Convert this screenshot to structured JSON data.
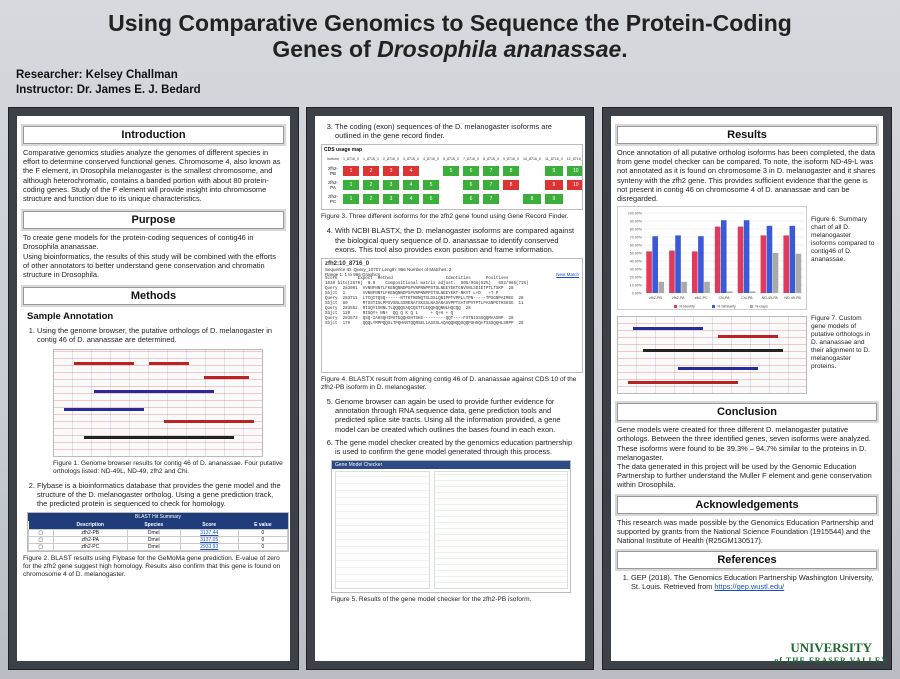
{
  "title": {
    "line1": "Using Comparative Genomics to Sequence the Protein-Coding",
    "line2_pre": "Genes of ",
    "line2_italic": "Drosophila ananassae",
    "line2_post": "."
  },
  "authors": {
    "researcher": "Researcher: Kelsey Challman",
    "instructor": "Instructor: Dr. James E. J. Bedard"
  },
  "introduction": {
    "heading": "Introduction",
    "text": "Comparative genomics studies analyze the genomes of different species in effort to determine conserved functional genes. Chromosome 4, also known as the F element, in Drosophila melanogaster is the smallest chromosome, and although heterochromatic, contains a banded portion with about 80 protein-coding genes. Study of the F element will provide insight into chromosome structure and function due to its unique characteristics."
  },
  "purpose": {
    "heading": "Purpose",
    "text1": "To create gene models for the protein-coding sequences of contig46 in Drosophila ananassae.",
    "text2": "Using bioinformatics, the results of this study will be combined with the efforts of other annotators to better understand gene conservation and chromatin structure in Drosophila."
  },
  "methods": {
    "heading": "Methods",
    "sub": "Sample Annotation",
    "step1": "Using the genome browser, the putative orthologs of D. melanogaster in contig 46 of D. ananassae are determined.",
    "fig1_cap": "Figure 1. Genome browser results for contig 46 of D. ananassae. Four putative orthologs listed: ND-49L, ND-49, zfh2 and Chi.",
    "step2": "Flybase is a bioinformatics database that provides the gene model and the structure of the D. melanogaster ortholog. Using a gene prediction track, the predicted protein is sequenced to check for homology.",
    "blast_table": {
      "title": "BLAST Hit Summary",
      "headers": [
        "",
        "Description",
        "Species",
        "Score",
        "E value"
      ],
      "rows": [
        [
          "",
          "zfh2-PB",
          "Dmel",
          "3137.44",
          "0"
        ],
        [
          "",
          "zfh2-PA",
          "Dmel",
          "3137.05",
          "0"
        ],
        [
          "",
          "zfh2-PC",
          "Dmel",
          "2933.93",
          "0"
        ]
      ]
    },
    "fig2_cap": "Figure 2. BLAST results using Flybase for the GeMoMa gene prediction. E-value of zero for the zfh2 gene suggest high homology. Results also confirm that this gene is found on chromosome 4 of D. melanogaster."
  },
  "col2": {
    "step3": "The coding (exon) sequences of the D. melanogaster isoforms are outlined in the gene record finder.",
    "usage_title": "CDS usage map",
    "usage_header": [
      "Isoform",
      "1_8716_0",
      "1_8716_1",
      "2_8716_0",
      "3_8716_0",
      "4_8716_0",
      "5_8716_0",
      "7_8716_0",
      "8_8716_0",
      "9_8716_0",
      "10_8716_0",
      "11_8716_0",
      "12_8716_0"
    ],
    "usage_rows": [
      {
        "name": "zfh2-PB",
        "cells": [
          "1",
          "2",
          "3",
          "4",
          "",
          "5",
          "6",
          "7",
          "8",
          "",
          "9",
          "10"
        ],
        "colors": [
          "r",
          "r",
          "r",
          "r",
          "w",
          "g",
          "g",
          "g",
          "g",
          "w",
          "g",
          "g"
        ]
      },
      {
        "name": "zfh2-PA",
        "cells": [
          "1",
          "2",
          "3",
          "4",
          "5",
          "",
          "6",
          "7",
          "8",
          "",
          "9",
          "10"
        ],
        "colors": [
          "g",
          "g",
          "g",
          "g",
          "g",
          "w",
          "g",
          "g",
          "r",
          "w",
          "r",
          "r"
        ]
      },
      {
        "name": "zfh2-PC",
        "cells": [
          "1",
          "2",
          "3",
          "4",
          "5",
          "",
          "6",
          "7",
          "",
          "8",
          "9",
          ""
        ],
        "colors": [
          "g",
          "g",
          "g",
          "g",
          "g",
          "w",
          "g",
          "g",
          "w",
          "g",
          "g",
          "w"
        ]
      }
    ],
    "fig3_cap": "Figure 3. Three different isoforms for the zfh2 gene found using Gene Record Finder.",
    "step4": "With NCBI BLASTX, the D. melanogaster isoforms are compared against the biological query sequence of D. ananassae to identify conserved exons. This tool also provides exon position and frame information.",
    "blast_head": "zfh2:10_8716_0",
    "blast_meta": "Sequence ID: Query_10707   Length: 966   Number of Matches: 2",
    "blast_range": "Range 1: 1 to 966 Graphics",
    "blast_next": "Next Match",
    "blast_lines": [
      "Score        Expect  Method                     Identities      Positives",
      "1038 bits(2670)  0.0    Compositional matrix adjust.  506/966(52%)   693/966(71%)",
      "Query  283091  VVNNFNNTLFKENQNNDPSPVNPNNPPSTSLNEEYEKTGNVVNLSDIETPTLTSKP  28",
      "Sbjct  1       VVNNFNNTLFKENQNNDPSPVNPNNPPSTSLNEEYEKT-NKVT L+D   +T P",
      "Query  283711  LTCQITQSQ------NTTKTNDNQTSLDSLQNIPPTVPPLLTPN-----TPSGNPAIMEG  28",
      "Sbjct  60      MTSSTISLPPSVSNLSSRENATSKSSLNASANASVPPTSATVPVTPTLPASNPGTHSHSG  11",
      "Query  283552  RISQYISNNLTLQQQQVAQCQSTTLEQQHQQNNLHQCQQ  28",
      "Sbjct  120     RISQY+ NN+  QQ Q K Q L     + Q+H + Q",
      "Query  283573  QSQ-IAHSQHIPSTEQQHSHTSHS---------QQT----FSTNISSSQQMAASRP  28",
      "Sbjct  179     QQQLYMPPQQSLTPQHANTQQRSELLASSSLAQAQQNQQSQQPSHSQATSSSQQHLSRPP  28"
    ],
    "fig4_cap": "Figure 4. BLASTX result from aligning contig 46 of D. ananassae against CDS 10 of the zfh2-PB isoform in D. melanogaster.",
    "step5": "Genome browser can again be used to provide further evidence for annotation through RNA sequence data, gene prediction tools and predicted splice site tracts. Using all the information provided, a gene model can be created which outlines the bases found in each exon.",
    "step6": "The gene model checker created by the genomics education partnership is used to confirm the gene model generated through this process.",
    "checker_title": "Gene Model Checker",
    "fig5_cap": "Figure 5. Results of the gene model checker for the zfh2-PB isoform."
  },
  "results": {
    "heading": "Results",
    "text": "Once annotation of all putative ortholog isoforms has been completed, the data from gene model checker can be compared. To note, the isoform ND-49-L was not annotated as it is found on chromosome 3 in D. melanogaster and it shares synteny with the zfh2 gene. This provides sufficient evidence that the gene is not present in contig 46 on chromosome 4 of D. ananassae and can be disregarded.",
    "fig6_cap": "Figure 6. Summary chart of all D. melanogaster isoforms compared to contig46 of D. ananassae.",
    "fig7_cap": "Figure 7. Custom gene models of putative orthologs in D. ananassae and their alignment to D. melanogaster proteins."
  },
  "chart_data": {
    "type": "bar",
    "categories": [
      "zfh2-PB",
      "zfh2-PA",
      "zfh2-PC",
      "Chi-PA",
      "Chi-PB",
      "ND-49-PA",
      "ND-49-PB"
    ],
    "series": [
      {
        "name": "% Identity",
        "values": [
          52,
          53,
          52,
          83,
          83,
          72,
          72
        ],
        "color": "#e03a5c"
      },
      {
        "name": "% Similarity",
        "values": [
          71,
          72,
          71,
          91,
          91,
          84,
          84
        ],
        "color": "#3a5ad8"
      },
      {
        "name": "% Gaps",
        "values": [
          14,
          14,
          14,
          2,
          2,
          50,
          49
        ],
        "color": "#aaaaaa"
      }
    ],
    "ylim": [
      0,
      100
    ],
    "yticks": [
      "0.00%",
      "10.00%",
      "20.00%",
      "30.00%",
      "40.00%",
      "50.00%",
      "60.00%",
      "70.00%",
      "80.00%",
      "90.00%",
      "100.00%"
    ]
  },
  "conclusion": {
    "heading": "Conclusion",
    "text1": "Gene models were created for three different D. melanogaster putative orthologs. Between the three identified genes, seven isoforms were analyzed. These isoforms were found to be 39.3% – 94.7% similar to the proteins in D. melanogaster.",
    "text2": "The data generated in this project will be used by the Genomic Education Partnership to further understand the Muller F element and gene conservation within Drosophila."
  },
  "acknowledgements": {
    "heading": "Acknowledgements",
    "text": "This research was made possible by the Genomics Education Partnership and supported by grants from the National Science Foundation (1915544) and the National Institute of Health (R25GM130517)."
  },
  "references": {
    "heading": "References",
    "ref1": "GEP (2018). The Genomics Education Partnership Washington University, St. Louis. Retrieved from ",
    "ref1_link": "https://gep.wustl.edu/"
  },
  "logo": {
    "line1": "UNIVERSITY",
    "line2": "of THE FRASER VALLEY"
  }
}
